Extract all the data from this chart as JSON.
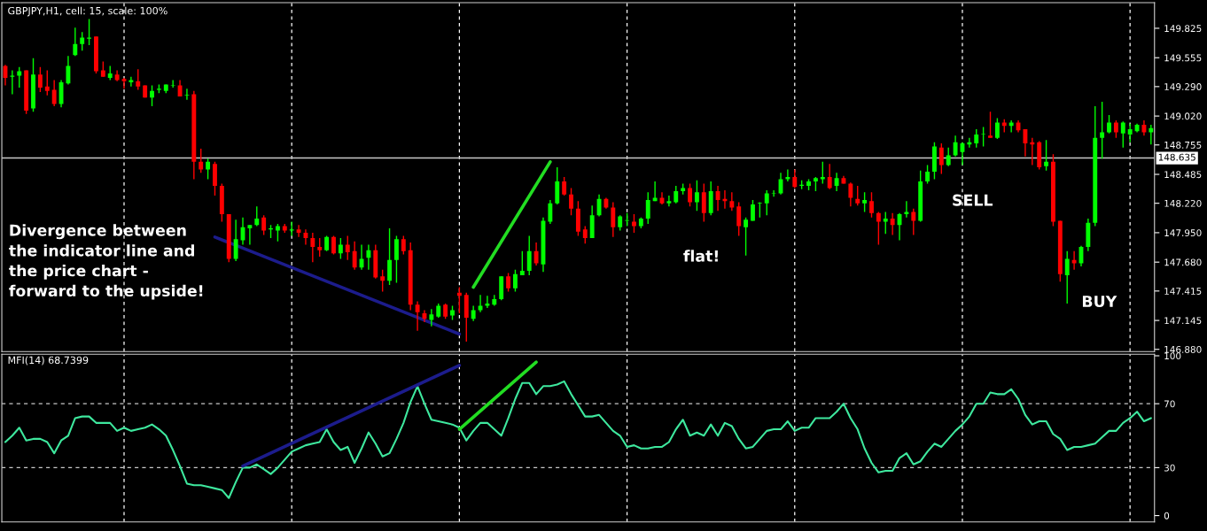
{
  "chart_data": [
    {
      "type": "candlestick",
      "title": "GBPJPY,H1, cell: 15, scale: 100%",
      "categories": [
        null,
        null,
        null,
        null,
        null,
        null,
        null,
        null,
        null,
        null,
        null,
        null,
        null,
        null,
        null,
        null,
        null,
        null,
        null,
        null,
        null,
        null,
        null,
        null,
        null,
        null,
        null,
        null,
        null,
        null,
        null,
        null,
        null,
        null,
        null,
        null,
        null,
        null,
        null,
        null,
        null,
        null,
        null,
        null,
        null,
        null,
        null,
        null,
        null,
        null,
        null,
        null,
        null,
        null,
        null,
        null,
        null,
        null,
        null,
        null,
        null,
        null,
        null,
        null,
        null,
        null,
        null,
        null,
        null,
        null,
        null,
        null,
        null,
        null,
        null,
        null,
        null,
        null,
        null,
        null,
        null,
        null,
        null,
        null,
        null,
        null,
        null,
        null,
        null,
        null,
        null,
        null,
        null,
        null,
        null,
        null,
        null,
        null,
        null,
        null,
        null,
        null,
        null,
        null,
        null,
        null,
        null,
        null,
        null,
        null,
        null,
        null,
        null,
        null,
        null,
        null,
        null,
        null,
        null,
        null,
        null,
        null,
        null,
        null,
        null,
        null,
        null,
        null,
        null,
        null,
        null,
        null,
        null,
        null,
        null,
        null,
        null,
        null,
        null,
        null,
        null,
        null,
        null,
        null,
        null,
        null,
        null,
        null,
        null,
        null,
        null,
        null,
        null,
        null,
        null,
        null,
        null,
        null,
        null,
        null,
        null,
        null,
        null,
        null,
        null
      ],
      "ohlc": [
        [
          149.48,
          149.49,
          149.3,
          149.37
        ],
        [
          149.38,
          149.44,
          149.22,
          149.39
        ],
        [
          149.39,
          149.47,
          149.28,
          149.43
        ],
        [
          149.44,
          149.44,
          149.04,
          149.07
        ],
        [
          149.09,
          149.55,
          149.06,
          149.4
        ],
        [
          149.4,
          149.47,
          149.24,
          149.28
        ],
        [
          149.29,
          149.44,
          149.21,
          149.25
        ],
        [
          149.26,
          149.35,
          149.11,
          149.13
        ],
        [
          149.13,
          149.35,
          149.1,
          149.33
        ],
        [
          149.32,
          149.57,
          149.31,
          149.48
        ],
        [
          149.58,
          149.83,
          149.57,
          149.68
        ],
        [
          149.68,
          149.79,
          149.62,
          149.74
        ],
        [
          149.73,
          149.91,
          149.67,
          149.74
        ],
        [
          149.75,
          149.75,
          149.41,
          149.43
        ],
        [
          149.44,
          149.52,
          149.38,
          149.38
        ],
        [
          149.37,
          149.48,
          149.35,
          149.41
        ],
        [
          149.4,
          149.44,
          149.34,
          149.35
        ],
        [
          149.36,
          149.37,
          149.27,
          149.34
        ],
        [
          149.33,
          149.38,
          149.29,
          149.35
        ],
        [
          149.34,
          149.45,
          149.26,
          149.29
        ],
        [
          149.3,
          149.3,
          149.19,
          149.19
        ],
        [
          149.19,
          149.3,
          149.11,
          149.25
        ],
        [
          149.26,
          149.31,
          149.23,
          149.27
        ],
        [
          149.25,
          149.31,
          149.23,
          149.31
        ],
        [
          149.3,
          149.35,
          149.28,
          149.3
        ],
        [
          149.3,
          149.35,
          149.2,
          149.2
        ],
        [
          149.21,
          149.27,
          149.17,
          149.21
        ],
        [
          149.22,
          149.25,
          148.44,
          148.6
        ],
        [
          148.6,
          148.72,
          148.5,
          148.53
        ],
        [
          148.53,
          148.63,
          148.44,
          148.6
        ],
        [
          148.58,
          148.6,
          148.29,
          148.38
        ],
        [
          148.38,
          148.4,
          148.05,
          148.12
        ],
        [
          148.12,
          148.12,
          147.68,
          147.71
        ],
        [
          147.71,
          148.07,
          147.69,
          147.89
        ],
        [
          147.88,
          148.09,
          147.84,
          148.0
        ],
        [
          147.99,
          148.02,
          147.84,
          148.02
        ],
        [
          148.02,
          148.19,
          148.01,
          148.08
        ],
        [
          148.09,
          148.11,
          147.93,
          147.97
        ],
        [
          147.98,
          148.02,
          147.9,
          147.99
        ],
        [
          147.97,
          148.03,
          147.87,
          148.01
        ],
        [
          148.01,
          148.03,
          147.95,
          147.97
        ],
        [
          147.97,
          148.05,
          147.92,
          147.98
        ],
        [
          147.98,
          148.02,
          147.91,
          147.95
        ],
        [
          147.95,
          147.98,
          147.84,
          147.9
        ],
        [
          147.9,
          147.95,
          147.68,
          147.82
        ],
        [
          147.82,
          147.9,
          147.73,
          147.79
        ],
        [
          147.79,
          147.92,
          147.78,
          147.91
        ],
        [
          147.91,
          147.92,
          147.75,
          147.76
        ],
        [
          147.76,
          147.9,
          147.71,
          147.84
        ],
        [
          147.84,
          147.92,
          147.7,
          147.77
        ],
        [
          147.78,
          147.87,
          147.61,
          147.63
        ],
        [
          147.63,
          147.84,
          147.61,
          147.71
        ],
        [
          147.72,
          147.84,
          147.61,
          147.79
        ],
        [
          147.79,
          147.84,
          147.53,
          147.54
        ],
        [
          147.55,
          147.61,
          147.41,
          147.51
        ],
        [
          147.51,
          147.99,
          147.47,
          147.7
        ],
        [
          147.7,
          147.92,
          147.49,
          147.89
        ],
        [
          147.89,
          147.92,
          147.75,
          147.78
        ],
        [
          147.79,
          147.86,
          147.24,
          147.29
        ],
        [
          147.29,
          147.32,
          147.05,
          147.22
        ],
        [
          147.21,
          147.24,
          147.13,
          147.16
        ],
        [
          147.15,
          147.25,
          147.09,
          147.2
        ],
        [
          147.18,
          147.3,
          147.17,
          147.28
        ],
        [
          147.29,
          147.3,
          147.16,
          147.18
        ],
        [
          147.19,
          147.28,
          147.15,
          147.24
        ],
        [
          147.4,
          147.45,
          147.21,
          147.37
        ],
        [
          147.38,
          147.4,
          146.95,
          147.17
        ],
        [
          147.16,
          147.28,
          147.14,
          147.24
        ],
        [
          147.24,
          147.38,
          147.22,
          147.28
        ],
        [
          147.28,
          147.37,
          147.26,
          147.3
        ],
        [
          147.29,
          147.38,
          147.28,
          147.34
        ],
        [
          147.34,
          147.55,
          147.33,
          147.55
        ],
        [
          147.55,
          147.58,
          147.41,
          147.44
        ],
        [
          147.44,
          147.61,
          147.41,
          147.57
        ],
        [
          147.56,
          147.78,
          147.56,
          147.6
        ],
        [
          147.6,
          147.92,
          147.56,
          147.78
        ],
        [
          147.78,
          147.86,
          147.65,
          147.67
        ],
        [
          147.66,
          148.09,
          147.59,
          148.06
        ],
        [
          148.05,
          148.25,
          148.03,
          148.22
        ],
        [
          148.22,
          148.55,
          148.21,
          148.42
        ],
        [
          148.42,
          148.46,
          148.29,
          148.3
        ],
        [
          148.3,
          148.36,
          148.11,
          148.17
        ],
        [
          148.17,
          148.24,
          147.92,
          147.96
        ],
        [
          147.98,
          148.01,
          147.85,
          147.9
        ],
        [
          147.9,
          148.2,
          147.9,
          148.11
        ],
        [
          148.11,
          148.3,
          148.1,
          148.26
        ],
        [
          148.26,
          148.27,
          148.17,
          148.18
        ],
        [
          148.18,
          148.23,
          147.91,
          148.0
        ],
        [
          148.0,
          148.11,
          147.97,
          148.1
        ],
        [
          148.06,
          148.13,
          148.01,
          148.06
        ],
        [
          148.05,
          148.12,
          147.95,
          148.01
        ],
        [
          148.01,
          148.09,
          147.99,
          148.08
        ],
        [
          148.08,
          148.32,
          148.03,
          148.25
        ],
        [
          148.24,
          148.42,
          148.24,
          148.27
        ],
        [
          148.27,
          148.32,
          148.21,
          148.22
        ],
        [
          148.22,
          148.29,
          148.19,
          148.24
        ],
        [
          148.23,
          148.38,
          148.22,
          148.33
        ],
        [
          148.33,
          148.4,
          148.3,
          148.36
        ],
        [
          148.36,
          148.4,
          148.19,
          148.23
        ],
        [
          148.23,
          148.43,
          148.15,
          148.32
        ],
        [
          148.32,
          148.4,
          148.05,
          148.13
        ],
        [
          148.13,
          148.42,
          148.11,
          148.33
        ],
        [
          148.33,
          148.38,
          148.15,
          148.25
        ],
        [
          148.26,
          148.34,
          148.17,
          148.24
        ],
        [
          148.24,
          148.32,
          148.15,
          148.18
        ],
        [
          148.19,
          148.23,
          147.92,
          148.01
        ],
        [
          148.0,
          148.09,
          147.74,
          148.07
        ],
        [
          148.06,
          148.25,
          148.06,
          148.21
        ],
        [
          148.22,
          148.23,
          148.09,
          148.22
        ],
        [
          148.22,
          148.34,
          148.11,
          148.31
        ],
        [
          148.31,
          148.34,
          148.28,
          148.31
        ],
        [
          148.31,
          148.5,
          148.3,
          148.44
        ],
        [
          148.44,
          148.53,
          148.42,
          148.46
        ],
        [
          148.46,
          148.53,
          148.36,
          148.37
        ],
        [
          148.38,
          148.43,
          148.35,
          148.39
        ],
        [
          148.38,
          148.44,
          148.34,
          148.42
        ],
        [
          148.42,
          148.46,
          148.33,
          148.45
        ],
        [
          148.44,
          148.6,
          148.4,
          148.46
        ],
        [
          148.46,
          148.58,
          148.35,
          148.36
        ],
        [
          148.38,
          148.5,
          148.33,
          148.45
        ],
        [
          148.45,
          148.47,
          148.4,
          148.4
        ],
        [
          148.4,
          148.41,
          148.19,
          148.27
        ],
        [
          148.26,
          148.38,
          148.2,
          148.22
        ],
        [
          148.22,
          148.32,
          148.14,
          148.25
        ],
        [
          148.24,
          148.32,
          148.09,
          148.13
        ],
        [
          148.13,
          148.14,
          147.84,
          148.05
        ],
        [
          148.05,
          148.14,
          147.94,
          148.08
        ],
        [
          148.08,
          148.13,
          147.93,
          148.02
        ],
        [
          148.02,
          148.13,
          147.88,
          148.12
        ],
        [
          148.12,
          148.24,
          148.09,
          148.14
        ],
        [
          148.14,
          148.17,
          147.93,
          148.06
        ],
        [
          148.06,
          148.52,
          148.05,
          148.42
        ],
        [
          148.42,
          148.57,
          148.4,
          148.51
        ],
        [
          148.51,
          148.78,
          148.44,
          148.74
        ],
        [
          148.73,
          148.77,
          148.49,
          148.57
        ],
        [
          148.57,
          148.73,
          148.56,
          148.66
        ],
        [
          148.66,
          148.84,
          148.65,
          148.78
        ],
        [
          148.69,
          148.78,
          148.57,
          148.77
        ],
        [
          148.76,
          148.82,
          148.73,
          148.78
        ],
        [
          148.77,
          148.9,
          148.73,
          148.85
        ],
        [
          148.85,
          148.92,
          148.74,
          148.85
        ],
        [
          148.84,
          149.06,
          148.82,
          148.82
        ],
        [
          148.82,
          149.0,
          148.81,
          148.96
        ],
        [
          148.96,
          148.99,
          148.87,
          148.93
        ],
        [
          148.93,
          148.98,
          148.87,
          148.96
        ],
        [
          148.96,
          148.98,
          148.87,
          148.89
        ],
        [
          148.9,
          148.9,
          148.65,
          148.77
        ],
        [
          148.78,
          148.82,
          148.57,
          148.76
        ],
        [
          148.78,
          148.79,
          148.53,
          148.55
        ],
        [
          148.56,
          148.8,
          148.52,
          148.6
        ],
        [
          148.6,
          148.67,
          148.01,
          148.05
        ],
        [
          148.06,
          148.06,
          147.5,
          147.57
        ],
        [
          147.56,
          147.78,
          147.3,
          147.71
        ],
        [
          147.7,
          147.78,
          147.61,
          147.67
        ],
        [
          147.67,
          147.83,
          147.64,
          147.82
        ],
        [
          147.82,
          148.08,
          147.78,
          148.04
        ],
        [
          148.04,
          149.11,
          148.01,
          148.82
        ],
        [
          148.82,
          149.15,
          148.63,
          148.87
        ],
        [
          148.87,
          149.03,
          148.86,
          148.96
        ],
        [
          148.96,
          148.98,
          148.82,
          148.87
        ],
        [
          148.86,
          148.97,
          148.73,
          148.96
        ],
        [
          148.85,
          148.95,
          148.78,
          148.9
        ],
        [
          148.88,
          148.95,
          148.87,
          148.94
        ],
        [
          148.94,
          148.98,
          148.84,
          148.87
        ],
        [
          148.87,
          148.94,
          148.76,
          148.91
        ]
      ],
      "colors": [
        "#ff0000",
        "#00ff00",
        "#00ff00",
        "#ff0000",
        "#00ff00",
        "#ff0000",
        "#ff0000",
        "#ff0000",
        "#00ff00",
        "#00ff00",
        "#00ff00",
        "#00ff00",
        "#00ff00",
        "#ff0000",
        "#ff0000",
        "#00ff00",
        "#ff0000",
        "#ff0000",
        "#00ff00",
        "#ff0000",
        "#ff0000",
        "#00ff00",
        "#00ff00",
        "#00ff00",
        "#00ff00",
        "#ff0000",
        "#00ff00",
        "#ff0000",
        "#ff0000",
        "#00ff00",
        "#ff0000",
        "#ff0000",
        "#ff0000",
        "#00ff00",
        "#00ff00",
        "#00ff00",
        "#00ff00",
        "#ff0000",
        "#00ff00",
        "#00ff00",
        "#ff0000",
        "#00ff00",
        "#ff0000",
        "#ff0000",
        "#ff0000",
        "#ff0000",
        "#00ff00",
        "#ff0000",
        "#00ff00",
        "#ff0000",
        "#ff0000",
        "#00ff00",
        "#00ff00",
        "#ff0000",
        "#ff0000",
        "#00ff00",
        "#00ff00",
        "#ff0000",
        "#ff0000",
        "#ff0000",
        "#ff0000",
        "#00ff00",
        "#00ff00",
        "#ff0000",
        "#00ff00",
        "#ff0000",
        "#ff0000",
        "#00ff00",
        "#00ff00",
        "#00ff00",
        "#00ff00",
        "#00ff00",
        "#ff0000",
        "#00ff00",
        "#00ff00",
        "#00ff00",
        "#ff0000",
        "#00ff00",
        "#00ff00",
        "#00ff00",
        "#ff0000",
        "#ff0000",
        "#ff0000",
        "#ff0000",
        "#00ff00",
        "#00ff00",
        "#ff0000",
        "#ff0000",
        "#00ff00",
        "#00ff00",
        "#ff0000",
        "#00ff00",
        "#00ff00",
        "#00ff00",
        "#ff0000",
        "#00ff00",
        "#00ff00",
        "#00ff00",
        "#ff0000",
        "#00ff00",
        "#ff0000",
        "#00ff00",
        "#ff0000",
        "#ff0000",
        "#ff0000",
        "#ff0000",
        "#00ff00",
        "#00ff00",
        "#00ff00",
        "#00ff00",
        "#00ff00",
        "#00ff00",
        "#00ff00",
        "#ff0000",
        "#00ff00",
        "#00ff00",
        "#00ff00",
        "#00ff00",
        "#ff0000",
        "#00ff00",
        "#ff0000",
        "#ff0000",
        "#ff0000",
        "#00ff00",
        "#ff0000",
        "#ff0000",
        "#00ff00",
        "#ff0000",
        "#00ff00",
        "#00ff00",
        "#ff0000",
        "#00ff00",
        "#00ff00",
        "#00ff00",
        "#ff0000",
        "#00ff00",
        "#00ff00",
        "#00ff00",
        "#00ff00",
        "#00ff00",
        "#00ff00",
        "#ff0000",
        "#00ff00",
        "#ff0000",
        "#00ff00",
        "#ff0000",
        "#ff0000",
        "#ff0000",
        "#ff0000",
        "#00ff00",
        "#ff0000",
        "#ff0000",
        "#00ff00",
        "#ff0000",
        "#00ff00",
        "#00ff00",
        "#00ff00",
        "#00ff00",
        "#00ff00",
        "#ff0000",
        "#00ff00",
        "#00ff00",
        "#00ff00",
        "#ff0000",
        "#00ff00"
      ],
      "series": [
        {
          "type": "line",
          "color": "#1c1c8c",
          "values": [
            null,
            null,
            null,
            null,
            null,
            null,
            null,
            null,
            null,
            null,
            null,
            null,
            null,
            null,
            null,
            null,
            null,
            null,
            null,
            null,
            null,
            null,
            null,
            null,
            null,
            null,
            null,
            null,
            null,
            null,
            147.91,
            null,
            null,
            null,
            null,
            null,
            null,
            null,
            null,
            null,
            null,
            null,
            null,
            null,
            null,
            null,
            null,
            null,
            null,
            null,
            null,
            null,
            null,
            null,
            null,
            null,
            null,
            null,
            null,
            null,
            null,
            null,
            null,
            null,
            null,
            147.02,
            null,
            null,
            null,
            null,
            null,
            null,
            null,
            null,
            null,
            null,
            null,
            null,
            null,
            null,
            null,
            null,
            null,
            null,
            null,
            null,
            null,
            null,
            null,
            null,
            null,
            null,
            null,
            null,
            null,
            null,
            null,
            null,
            null,
            null,
            null,
            null,
            null,
            null,
            null,
            null,
            null,
            null,
            null,
            null,
            null,
            null,
            null,
            null,
            null,
            null,
            null,
            null,
            null,
            null,
            null,
            null,
            null,
            null,
            null,
            null,
            null,
            null,
            null,
            null,
            null,
            null,
            null,
            null,
            null,
            null,
            null,
            null,
            null,
            null,
            null,
            null,
            null,
            null,
            null,
            null,
            null,
            null,
            null,
            null,
            null,
            null,
            null,
            null,
            null,
            null,
            null,
            null,
            null,
            null,
            null,
            null,
            null,
            null,
            null
          ]
        },
        {
          "type": "line",
          "color": "#22dd22",
          "values": [
            null,
            null,
            null,
            null,
            null,
            null,
            null,
            null,
            null,
            null,
            null,
            null,
            null,
            null,
            null,
            null,
            null,
            null,
            null,
            null,
            null,
            null,
            null,
            null,
            null,
            null,
            null,
            null,
            null,
            null,
            null,
            null,
            null,
            null,
            null,
            null,
            null,
            null,
            null,
            null,
            null,
            null,
            null,
            null,
            null,
            null,
            null,
            null,
            null,
            null,
            null,
            null,
            null,
            null,
            null,
            null,
            null,
            null,
            null,
            null,
            null,
            null,
            null,
            null,
            null,
            null,
            null,
            147.45,
            null,
            null,
            null,
            null,
            null,
            null,
            null,
            null,
            null,
            null,
            148.6,
            null,
            null,
            null,
            null,
            null,
            null,
            null,
            null,
            null,
            null,
            null,
            null,
            null,
            null,
            null,
            null,
            null,
            null,
            null,
            null,
            null,
            null,
            null,
            null,
            null,
            null,
            null,
            null,
            null,
            null,
            null,
            null,
            null,
            null,
            null,
            null,
            null,
            null,
            null,
            null,
            null,
            null,
            null,
            null,
            null,
            null,
            null,
            null,
            null,
            null,
            null,
            null,
            null,
            null,
            null,
            null,
            null,
            null,
            null,
            null,
            null,
            null,
            null,
            null,
            null,
            null,
            null,
            null,
            null,
            null,
            null,
            null,
            null,
            null,
            null,
            null,
            null,
            null,
            null,
            null,
            null,
            null,
            null,
            null,
            null,
            null
          ]
        }
      ],
      "ylim": [
        146.86,
        150.06
      ],
      "yticks": [
        {
          "value": 146.88,
          "label": "146.880"
        },
        147.145,
        147.415,
        {
          "value": 147.68,
          "label": "147.680"
        },
        {
          "value": 147.95,
          "label": "147.950"
        },
        {
          "value": 148.22,
          "label": "148.220"
        },
        148.485,
        148.755,
        {
          "value": 149.02,
          "label": "149.020"
        },
        {
          "value": 149.29,
          "label": "149.290"
        },
        149.555,
        149.825
      ],
      "ref_lines": [
        {
          "axis": "y",
          "value": 148.635,
          "label": "148.635",
          "color": "#c8c8c8"
        }
      ],
      "annotations": [
        "Divergence between\nthe indicator line and\nthe price chart -\nforward to the upside!",
        "flat!",
        "SELL",
        "BUY"
      ],
      "grid": "x",
      "tick_labels": "y"
    },
    {
      "type": "line",
      "title": "MFI(14) 68.7399",
      "categories": [
        null,
        null,
        null,
        null,
        null,
        null,
        null,
        null,
        null,
        null,
        null,
        null,
        null,
        null,
        null,
        null,
        null,
        null,
        null,
        null,
        null,
        null,
        null,
        null,
        null,
        null,
        null,
        null,
        null,
        null,
        null,
        null,
        null,
        null,
        null,
        null,
        null,
        null,
        null,
        null,
        null,
        null,
        null,
        null,
        null,
        null,
        null,
        null,
        null,
        null,
        null,
        null,
        null,
        null,
        null,
        null,
        null,
        null,
        null,
        null,
        null,
        null,
        null,
        null,
        null,
        null,
        null,
        null,
        null,
        null,
        null,
        null,
        null,
        null,
        null,
        null,
        null,
        null,
        null,
        null,
        null,
        null,
        null,
        null,
        null,
        null,
        null,
        null,
        null,
        null,
        null,
        null,
        null,
        null,
        null,
        null,
        null,
        null,
        null,
        null,
        null,
        null,
        null,
        null,
        null,
        null,
        null,
        null,
        null,
        null,
        null,
        null,
        null,
        null,
        null,
        null,
        null,
        null,
        null,
        null,
        null,
        null,
        null,
        null,
        null,
        null,
        null,
        null,
        null,
        null,
        null,
        null,
        null,
        null,
        null,
        null,
        null,
        null,
        null,
        null,
        null,
        null,
        null,
        null,
        null,
        null,
        null,
        null,
        null,
        null,
        null,
        null,
        null,
        null,
        null,
        null,
        null,
        null,
        null,
        null,
        null,
        null,
        null,
        null,
        null
      ],
      "series": [
        {
          "color": "#3ee89e",
          "values": [
            46,
            50,
            55,
            47,
            48,
            48,
            46,
            39,
            47,
            50,
            61,
            62,
            62,
            58,
            58,
            58,
            53,
            55,
            53,
            54,
            55,
            57,
            54,
            50,
            41,
            31,
            20,
            19,
            19,
            18,
            17,
            16,
            11,
            21,
            30,
            30,
            32,
            29,
            26,
            30,
            35,
            40,
            42,
            44,
            45,
            46,
            54,
            46,
            41,
            43,
            33,
            42,
            52,
            45,
            37,
            39,
            48,
            58,
            71,
            81,
            70,
            60,
            59,
            58,
            57,
            55,
            47,
            53,
            58,
            58,
            54,
            50,
            61,
            73,
            83,
            83,
            76,
            81,
            81,
            82,
            84,
            76,
            69,
            62,
            62,
            63,
            58,
            53,
            50,
            43,
            44,
            42,
            42,
            43,
            43,
            46,
            54,
            60,
            50,
            52,
            50,
            57,
            50,
            58,
            56,
            48,
            42,
            43,
            48,
            53,
            54,
            54,
            59,
            53,
            55,
            55,
            61,
            61,
            61,
            65,
            70,
            61,
            54,
            42,
            33,
            27,
            28,
            28,
            36,
            39,
            32,
            34,
            40,
            45,
            43,
            48,
            53,
            57,
            62,
            70,
            70,
            77,
            76,
            76,
            79,
            73,
            63,
            57,
            59,
            59,
            51,
            48,
            41,
            43,
            43,
            44,
            45,
            49,
            53,
            53,
            58,
            61,
            65,
            59,
            61
          ]
        },
        {
          "type": "line",
          "color": "#1c1c8c",
          "values": [
            null,
            null,
            null,
            null,
            null,
            null,
            null,
            null,
            null,
            null,
            null,
            null,
            null,
            null,
            null,
            null,
            null,
            null,
            null,
            null,
            null,
            null,
            null,
            null,
            null,
            null,
            null,
            null,
            null,
            null,
            null,
            null,
            null,
            null,
            31,
            null,
            null,
            null,
            null,
            null,
            null,
            null,
            null,
            null,
            null,
            null,
            null,
            null,
            null,
            null,
            null,
            null,
            null,
            null,
            null,
            null,
            null,
            null,
            null,
            null,
            null,
            null,
            null,
            null,
            null,
            94,
            null,
            null,
            null,
            null,
            null,
            null,
            null,
            null,
            null,
            null,
            null,
            null,
            null,
            null,
            null,
            null,
            null,
            null,
            null,
            null,
            null,
            null,
            null,
            null,
            null,
            null,
            null,
            null,
            null,
            null,
            null,
            null,
            null,
            null,
            null,
            null,
            null,
            null,
            null,
            null,
            null,
            null,
            null,
            null,
            null,
            null,
            null,
            null,
            null,
            null,
            null,
            null,
            null,
            null,
            null,
            null,
            null,
            null,
            null,
            null,
            null,
            null,
            null,
            null,
            null,
            null,
            null,
            null,
            null,
            null,
            null,
            null,
            null,
            null,
            null,
            null,
            null,
            null,
            null,
            null,
            null,
            null,
            null,
            null,
            null,
            null,
            null,
            null,
            null,
            null,
            null,
            null,
            null,
            null,
            null,
            null,
            null,
            null,
            null
          ]
        },
        {
          "type": "line",
          "color": "#22dd22",
          "values": [
            null,
            null,
            null,
            null,
            null,
            null,
            null,
            null,
            null,
            null,
            null,
            null,
            null,
            null,
            null,
            null,
            null,
            null,
            null,
            null,
            null,
            null,
            null,
            null,
            null,
            null,
            null,
            null,
            null,
            null,
            null,
            null,
            null,
            null,
            null,
            null,
            null,
            null,
            null,
            null,
            null,
            null,
            null,
            null,
            null,
            null,
            null,
            null,
            null,
            null,
            null,
            null,
            null,
            null,
            null,
            null,
            null,
            null,
            null,
            null,
            null,
            null,
            null,
            null,
            null,
            54,
            null,
            null,
            null,
            null,
            null,
            null,
            null,
            null,
            null,
            null,
            96,
            null,
            null,
            null,
            null,
            null,
            null,
            null,
            null,
            null,
            null,
            null,
            null,
            null,
            null,
            null,
            null,
            null,
            null,
            null,
            null,
            null,
            null,
            null,
            null,
            null,
            null,
            null,
            null,
            null,
            null,
            null,
            null,
            null,
            null,
            null,
            null,
            null,
            null,
            null,
            null,
            null,
            null,
            null,
            null,
            null,
            null,
            null,
            null,
            null,
            null,
            null,
            null,
            null,
            null,
            null,
            null,
            null,
            null,
            null,
            null,
            null,
            null,
            null,
            null,
            null,
            null,
            null,
            null,
            null,
            null,
            null,
            null,
            null,
            null,
            null,
            null,
            null,
            null,
            null,
            null,
            null,
            null,
            null,
            null,
            null,
            null,
            null,
            null
          ]
        }
      ],
      "ylim": [
        -4,
        101
      ],
      "yticks": [
        0,
        30,
        70,
        100
      ],
      "ref_lines": [
        {
          "axis": "y",
          "value": 70,
          "color": "#c8c8c8",
          "line_style": "dashed"
        },
        {
          "axis": "y",
          "value": 30,
          "color": "#c8c8c8",
          "line_style": "dashed"
        }
      ],
      "grid": "x",
      "tick_labels": "y"
    }
  ]
}
